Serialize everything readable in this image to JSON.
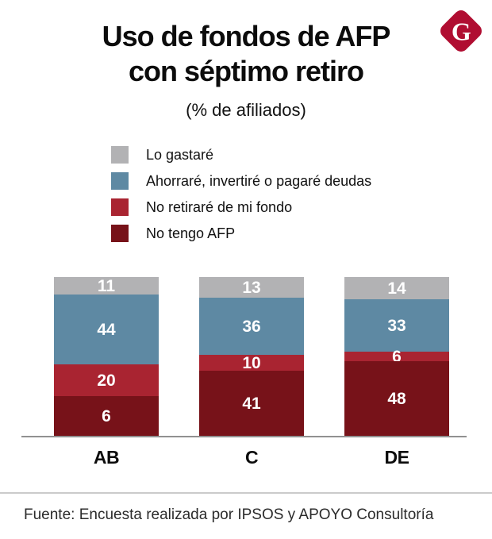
{
  "page": {
    "title_line1": "Uso de fondos de AFP",
    "title_line2": "con séptimo retiro",
    "subtitle": "(% de afiliados)",
    "source": "Fuente: Encuesta realizada por IPSOS y APOYO Consultoría",
    "logo_letter": "G",
    "logo_color": "#b00d31"
  },
  "chart_data": {
    "type": "bar",
    "stacked": true,
    "normalized_bar_height": true,
    "title": "Uso de fondos de AFP con séptimo retiro",
    "value_unit": "% de afiliados",
    "legend_position": "top-left",
    "grid": false,
    "categories": [
      "AB",
      "C",
      "DE"
    ],
    "series": [
      {
        "name": "Lo gastaré",
        "color": "#b2b2b4",
        "values": [
          11,
          13,
          14
        ]
      },
      {
        "name": "Ahorraré, invertiré o pagaré deudas",
        "color": "#5e89a3",
        "values": [
          44,
          36,
          33
        ]
      },
      {
        "name": "No retiraré de mi fondo",
        "color": "#a92431",
        "values": [
          20,
          10,
          6
        ]
      },
      {
        "name": "No tengo AFP",
        "color": "#771219",
        "values": [
          6,
          41,
          48
        ]
      }
    ],
    "axis_color": "#919191"
  }
}
